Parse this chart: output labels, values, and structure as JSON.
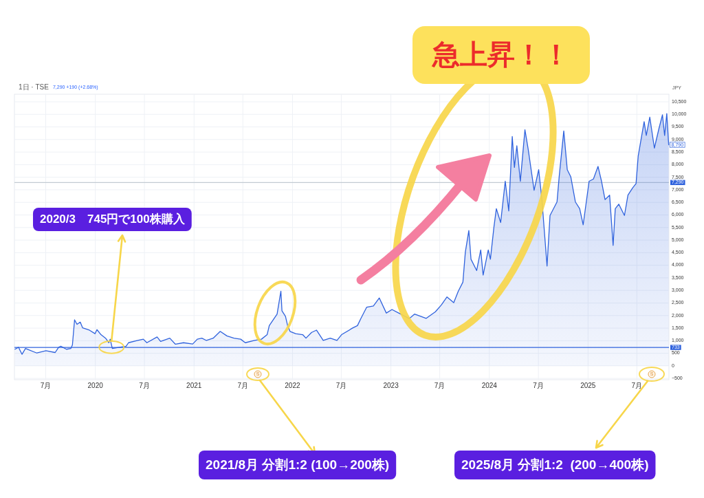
{
  "chart_data": {
    "type": "area",
    "title": "急上昇！！",
    "subtitle": "1日 · TSE",
    "ylabel": "JPY",
    "annotations": [
      "7,290 +190 (+2.68%)",
      {
        "text": "2020/3　745円で100株購入",
        "x": "2020-03",
        "y": 745
      },
      "2021/8月 分割1:2 (100→200株)",
      "2025/8月 分割1:2  (200→400株)",
      "S",
      "S",
      {
        "text": "8,790",
        "x": "2025-10-27",
        "y": 8790
      }
    ],
    "x": [
      "2019-03-09",
      "2019-03-22",
      "2019-04-04",
      "2019-04-17",
      "2019-05-29",
      "2019-07-02",
      "2019-08-05",
      "2019-08-18",
      "2019-08-26",
      "2019-09-16",
      "2019-10-02",
      "2019-10-08",
      "2019-10-16",
      "2019-10-25",
      "2019-11-06",
      "2019-11-15",
      "2019-12-10",
      "2019-12-31",
      "2020-01-07",
      "2020-01-22",
      "2020-02-08",
      "2020-02-20",
      "2020-02-25",
      "2020-03-04",
      "2020-03-30",
      "2020-04-24",
      "2020-05-03",
      "2020-06-06",
      "2020-06-27",
      "2020-07-10",
      "2020-08-17",
      "2020-08-30",
      "2020-10-03",
      "2020-10-24",
      "2020-11-23",
      "2020-12-27",
      "2021-01-13",
      "2021-01-30",
      "2021-02-16",
      "2021-03-13",
      "2021-04-08",
      "2021-05-03",
      "2021-05-29",
      "2021-06-23",
      "2021-07-10",
      "2021-08-13",
      "2021-09-08",
      "2021-09-29",
      "2021-10-07",
      "2021-11-05",
      "2021-11-19",
      "2021-11-23",
      "2021-12-06",
      "2021-12-14",
      "2021-12-23",
      "2022-01-13",
      "2022-02-08",
      "2022-02-20",
      "2022-03-13",
      "2022-03-31",
      "2022-04-25",
      "2022-05-21",
      "2022-06-15",
      "2022-07-02",
      "2022-08-13",
      "2022-08-30",
      "2022-09-12",
      "2022-10-03",
      "2022-10-28",
      "2022-11-19",
      "2022-12-15",
      "2023-01-05",
      "2023-01-30",
      "2023-03-10",
      "2023-03-30",
      "2023-05-12",
      "2023-06-15",
      "2023-07-07",
      "2023-07-28",
      "2023-08-22",
      "2023-09-08",
      "2023-09-25",
      "2023-10-04",
      "2023-10-17",
      "2023-10-25",
      "2023-11-15",
      "2023-11-30",
      "2023-12-09",
      "2023-12-28",
      "2024-01-05",
      "2024-01-18",
      "2024-01-27",
      "2024-02-12",
      "2024-02-29",
      "2024-03-13",
      "2024-03-26",
      "2024-04-03",
      "2024-04-12",
      "2024-04-25",
      "2024-05-12",
      "2024-05-24",
      "2024-06-15",
      "2024-07-02",
      "2024-07-14",
      "2024-08-02",
      "2024-08-13",
      "2024-09-08",
      "2024-09-16",
      "2024-10-03",
      "2024-10-16",
      "2024-10-29",
      "2024-11-15",
      "2024-12-01",
      "2024-12-14",
      "2025-01-05",
      "2025-01-21",
      "2025-02-07",
      "2025-02-20",
      "2025-03-05",
      "2025-03-22",
      "2025-04-04",
      "2025-04-12",
      "2025-04-25",
      "2025-05-16",
      "2025-05-29",
      "2025-06-15",
      "2025-06-28",
      "2025-07-06",
      "2025-07-28",
      "2025-08-05",
      "2025-08-18",
      "2025-09-04",
      "2025-09-21",
      "2025-10-04",
      "2025-10-12",
      "2025-10-20",
      "2025-10-27"
    ],
    "series": [
      {
        "color": "#2f62dd",
        "values": [
          660,
          740,
          460,
          690,
          510,
          600,
          530,
          740,
          780,
          660,
          690,
          830,
          1830,
          1650,
          1740,
          1510,
          1420,
          1280,
          1440,
          1240,
          1100,
          920,
          1060,
          690,
          740,
          780,
          920,
          1010,
          1060,
          920,
          1150,
          970,
          1100,
          860,
          920,
          870,
          1060,
          1100,
          1010,
          1100,
          1370,
          1190,
          1100,
          1060,
          920,
          1010,
          1060,
          1240,
          1600,
          2060,
          2970,
          2190,
          1970,
          1600,
          1370,
          1280,
          1240,
          1100,
          1330,
          1420,
          1010,
          1100,
          1010,
          1240,
          1510,
          1600,
          1890,
          2330,
          2380,
          2700,
          2100,
          2240,
          2100,
          1880,
          2060,
          1890,
          2150,
          2420,
          2740,
          2510,
          2970,
          3330,
          4520,
          5380,
          4240,
          3790,
          4610,
          3610,
          4610,
          4240,
          5520,
          6250,
          5700,
          7340,
          6160,
          9120,
          7890,
          8750,
          7340,
          9390,
          8620,
          6980,
          7800,
          6610,
          3970,
          5980,
          6520,
          7520,
          9340,
          7800,
          7520,
          6520,
          6250,
          5610,
          7340,
          7430,
          7930,
          7340,
          6610,
          6790,
          4790,
          6250,
          6430,
          5980,
          6790,
          7070,
          7250,
          8340,
          9710,
          9160,
          9890,
          8660,
          9440,
          9980,
          9160,
          10030,
          8790
        ]
      }
    ],
    "xlim": [
      "2019-03-07",
      "2025-10-28"
    ],
    "xticks": [
      {
        "value": "2019-07-01",
        "label": "7月"
      },
      {
        "value": "2020-01-01",
        "label": "2020"
      },
      {
        "value": "2020-07-01",
        "label": "7月"
      },
      {
        "value": "2021-01-01",
        "label": "2021"
      },
      {
        "value": "2021-07-01",
        "label": "7月"
      },
      {
        "value": "2022-01-01",
        "label": "2022"
      },
      {
        "value": "2022-07-01",
        "label": "7月"
      },
      {
        "value": "2023-01-01",
        "label": "2023"
      },
      {
        "value": "2023-07-01",
        "label": "7月"
      },
      {
        "value": "2024-01-01",
        "label": "2024"
      },
      {
        "value": "2024-07-01",
        "label": "7月"
      },
      {
        "value": "2025-01-01",
        "label": "2025"
      },
      {
        "value": "2025-07-01",
        "label": "7月"
      }
    ],
    "ylim": [
      -550,
      10800
    ],
    "yticks": [
      {
        "value": -500,
        "label": "−500"
      },
      0,
      500,
      {
        "value": 1000,
        "label": "1,000"
      },
      {
        "value": 1500,
        "label": "1,500"
      },
      {
        "value": 2000,
        "label": "2,000"
      },
      {
        "value": 2500,
        "label": "2,500"
      },
      {
        "value": 3000,
        "label": "3,000"
      },
      {
        "value": 3500,
        "label": "3,500"
      },
      {
        "value": 4000,
        "label": "4,000"
      },
      {
        "value": 4500,
        "label": "4,500"
      },
      {
        "value": 5000,
        "label": "5,000"
      },
      {
        "value": 5500,
        "label": "5,500"
      },
      {
        "value": 6000,
        "label": "6,000"
      },
      {
        "value": 6500,
        "label": "6,500"
      },
      {
        "value": 7000,
        "label": "7,000"
      },
      {
        "value": 7500,
        "label": "7,500"
      },
      {
        "value": 8000,
        "label": "8,000"
      },
      {
        "value": 8500,
        "label": "8,500"
      },
      {
        "value": 9000,
        "label": "9,000"
      },
      {
        "value": 9500,
        "label": "9,500"
      },
      {
        "value": 10000,
        "label": "10,000"
      },
      {
        "value": 10500,
        "label": "10,500"
      }
    ],
    "grid": true,
    "ref_lines": [
      {
        "axis": "y",
        "value": 7290,
        "label": "7,290",
        "color": "#c3cbd2"
      },
      {
        "axis": "y",
        "value": 733,
        "label": "733",
        "color": "#2f62dd"
      }
    ]
  }
}
